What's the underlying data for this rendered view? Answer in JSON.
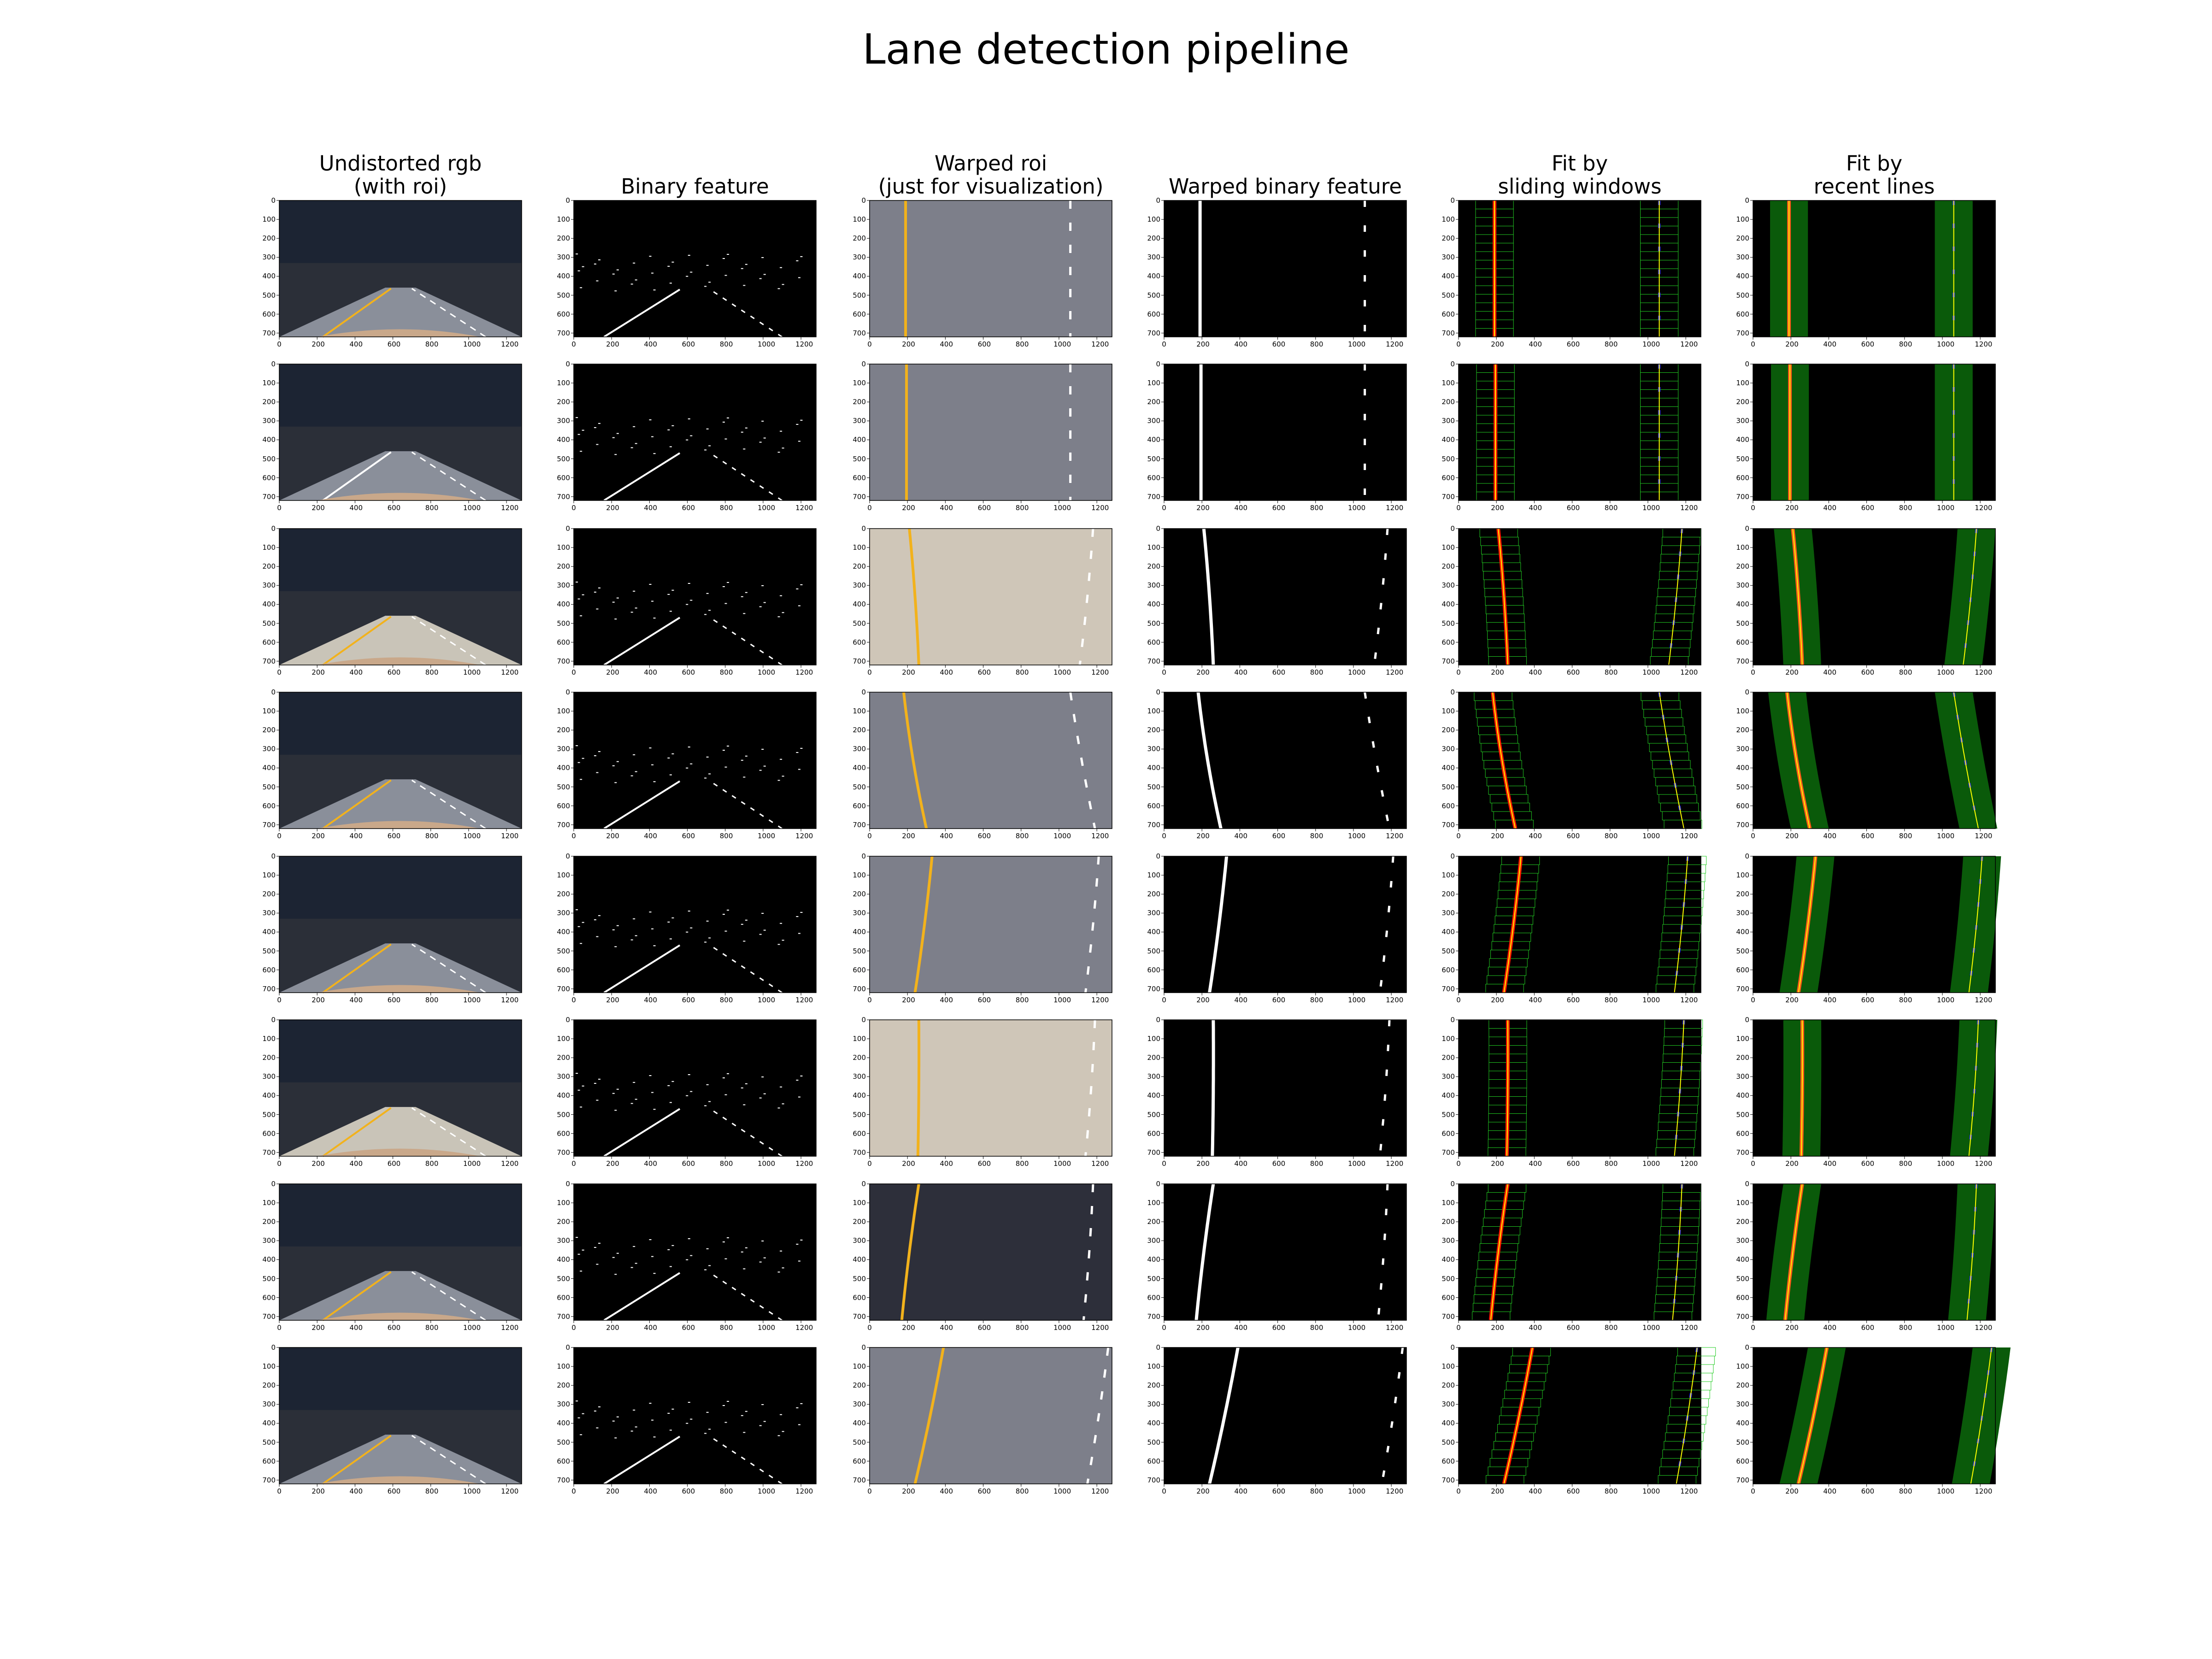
{
  "title": "Lane detection pipeline",
  "columns": [
    {
      "lines": [
        "Undistorted rgb",
        "(with roi)"
      ],
      "kind": "rgb"
    },
    {
      "lines": [
        "Binary feature"
      ],
      "kind": "binary"
    },
    {
      "lines": [
        "Warped roi",
        "(just for visualization)"
      ],
      "kind": "warped"
    },
    {
      "lines": [
        "Warped binary feature"
      ],
      "kind": "warped-binary"
    },
    {
      "lines": [
        "Fit by",
        "sliding windows"
      ],
      "kind": "sliding"
    },
    {
      "lines": [
        "Fit by",
        "recent lines"
      ],
      "kind": "recent"
    }
  ],
  "x_ticks": [
    "0",
    "200",
    "400",
    "600",
    "800",
    "1000",
    "1200"
  ],
  "y_ticks": [
    "0",
    "100",
    "200",
    "300",
    "400",
    "500",
    "600",
    "700"
  ],
  "rows": [
    {
      "left_x": [
        190,
        190,
        190
      ],
      "right_x": [
        1060,
        1060,
        1060
      ],
      "left_lane": "yellow",
      "right_lane": "white",
      "scene": "day"
    },
    {
      "left_x": [
        195,
        195,
        195
      ],
      "right_x": [
        1060,
        1060,
        1060
      ],
      "left_lane": "white",
      "right_lane": "white",
      "scene": "dusk"
    },
    {
      "left_x": [
        210,
        240,
        260
      ],
      "right_x": [
        1180,
        1150,
        1110
      ],
      "left_lane": "yellow",
      "right_lane": "white",
      "scene": "bright"
    },
    {
      "left_x": [
        180,
        230,
        300
      ],
      "right_x": [
        1060,
        1120,
        1190
      ],
      "left_lane": "yellow",
      "right_lane": "white",
      "scene": "curve"
    },
    {
      "left_x": [
        330,
        290,
        240
      ],
      "right_x": [
        1210,
        1180,
        1140
      ],
      "left_lane": "yellow",
      "right_lane": "white",
      "scene": "day"
    },
    {
      "left_x": [
        260,
        260,
        255
      ],
      "right_x": [
        1190,
        1170,
        1140
      ],
      "left_lane": "yellow",
      "right_lane": "white",
      "scene": "bright"
    },
    {
      "left_x": [
        260,
        210,
        170
      ],
      "right_x": [
        1180,
        1160,
        1130
      ],
      "left_lane": "yellow",
      "right_lane": "white",
      "scene": "shadow"
    },
    {
      "left_x": [
        390,
        320,
        240
      ],
      "right_x": [
        1260,
        1210,
        1150
      ],
      "left_lane": "yellow",
      "right_lane": "white",
      "scene": "day"
    }
  ],
  "colors": {
    "sky_dark": "#1c2433",
    "road": "#8a8f9a",
    "yellow_line": "#f2b21c",
    "fit_line": "#ffff00",
    "left_pixels": "#ff1a00",
    "right_pixels": "#2a2aff",
    "window_box": "#22cc22",
    "band": "#0a5a0a"
  }
}
